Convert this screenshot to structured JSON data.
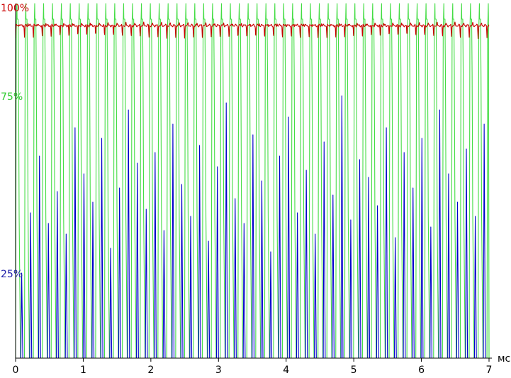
{
  "chart_data": {
    "type": "line",
    "title": "",
    "xlabel": "",
    "ylabel": "",
    "x_unit": "мс",
    "xlim": [
      0,
      7
    ],
    "x_ticks": [
      "0",
      "1",
      "2",
      "3",
      "4",
      "5",
      "6",
      "7"
    ],
    "ylim": [
      0,
      100
    ],
    "y_ticks": [
      {
        "label": "100%",
        "value": 100,
        "color": "#cc0000"
      },
      {
        "label": "75%",
        "value": 75,
        "color": "#33cc33"
      },
      {
        "label": "25%",
        "value": 25,
        "color": "#2222aa"
      }
    ],
    "grid": false,
    "series": [
      {
        "color": "#cc0000",
        "kind": "steady",
        "period_ms": 0.1315,
        "base_level_pct": 93.8,
        "dip_level_pct": 90.3,
        "dip_fraction": 0.12
      },
      {
        "color": "#44dd44",
        "kind": "pulse",
        "period_ms": 0.1315,
        "low_level_pct": 0,
        "peak_level_pct": 100,
        "plateau_level_pct": 95.6,
        "rise_fraction": 0.08,
        "peak_fraction": 0.15,
        "plateau_fraction": 0.28,
        "fall_end_fraction": 0.55
      },
      {
        "color": "#0000cc",
        "kind": "spikes",
        "period_ms": 0.1315,
        "first_peak_ms": 0.09,
        "peak_levels_pct": [
          24,
          41,
          57,
          38,
          47,
          35,
          65,
          52,
          44,
          62,
          31,
          48,
          70,
          55,
          42,
          58,
          36,
          66,
          49,
          40,
          60,
          33,
          54,
          72,
          45,
          38,
          63,
          50,
          30,
          57,
          68,
          41,
          53,
          35,
          61,
          46,
          74,
          39,
          56,
          51,
          43,
          65,
          34,
          58,
          48,
          62,
          37,
          70,
          52,
          44,
          59,
          40,
          66
        ],
        "half_width_ms": 0.012
      }
    ]
  }
}
